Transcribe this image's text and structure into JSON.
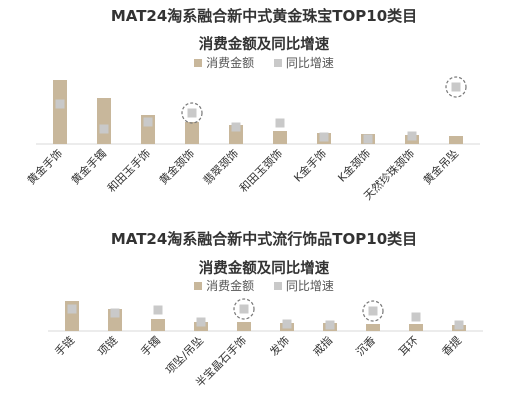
{
  "colors": {
    "amount": "#c8b79b",
    "growth": "#c9c9c9",
    "axis": "#d9d9d9",
    "highlight": "#777777"
  },
  "chart_data": [
    {
      "type": "bar",
      "title": "MAT24淘系融合新中式黄金珠宝TOP10类目",
      "subtitle": "消费金额及同比增速",
      "series": [
        {
          "name": "消费金额",
          "type": "bar",
          "values": [
            64,
            46,
            29,
            22,
            19,
            13,
            11,
            10,
            9,
            8
          ]
        },
        {
          "name": "同比增速",
          "type": "marker",
          "values": [
            40,
            15,
            22,
            31,
            17,
            21,
            7,
            5,
            8,
            57
          ]
        }
      ],
      "categories": [
        "黄金手饰",
        "黄金手镯",
        "和田玉手饰",
        "黄金颈饰",
        "翡翠颈饰",
        "和田玉颈饰",
        "K金手饰",
        "K金颈饰",
        "天然珍珠颈饰",
        "黄金吊坠"
      ],
      "highlighted": [
        "黄金颈饰",
        "黄金吊坠"
      ],
      "legend_position": "top",
      "grid": false
    },
    {
      "type": "bar",
      "title": "MAT24淘系融合新中式流行饰品TOP10类目",
      "subtitle": "消费金额及同比增速",
      "series": [
        {
          "name": "消费金额",
          "type": "bar",
          "values": [
            30,
            22,
            12,
            9,
            9,
            8,
            8,
            7,
            7,
            6
          ]
        },
        {
          "name": "同比增速",
          "type": "marker",
          "values": [
            22,
            18,
            21,
            9,
            22,
            7,
            6,
            20,
            14,
            6
          ]
        }
      ],
      "categories": [
        "手链",
        "项链",
        "手镯",
        "项坠/吊坠",
        "半宝晶石手饰",
        "发饰",
        "戒指",
        "沉香",
        "耳环",
        "香提"
      ],
      "highlighted": [
        "半宝晶石手饰",
        "沉香"
      ],
      "legend_position": "top",
      "grid": false
    }
  ]
}
